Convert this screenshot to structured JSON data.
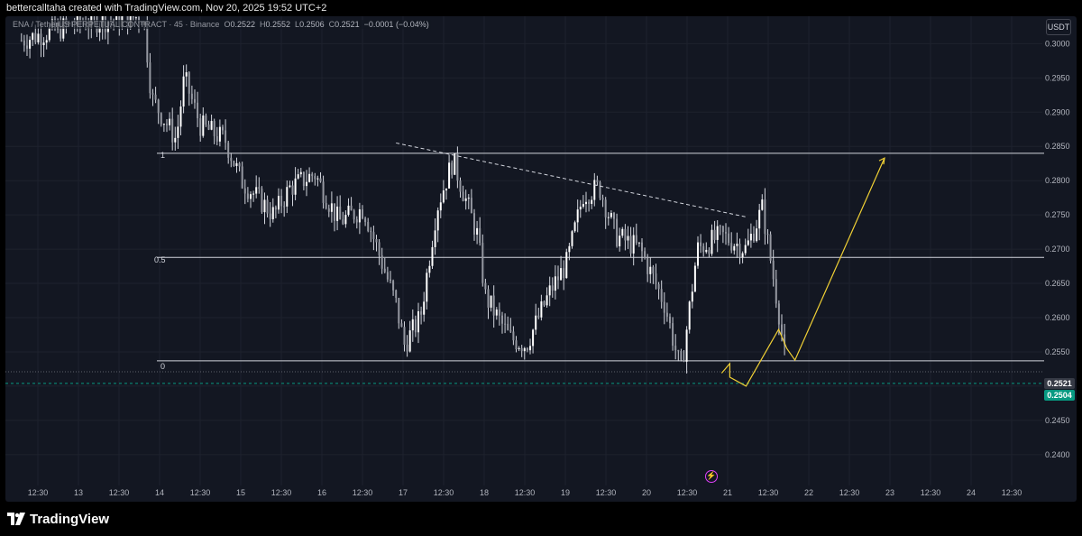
{
  "header": {
    "attribution": "bettercalltaha created with TradingView.com, Nov 20, 2025 19:52 UTC+2"
  },
  "legend": {
    "symbol": "ENA / TetherUS PERPETUAL CONTRACT · 45 · Binance",
    "open_k": "O",
    "open": "0.2522",
    "high_k": "H",
    "high": "0.2552",
    "low_k": "L",
    "low": "0.2506",
    "close_k": "C",
    "close": "0.2521",
    "change": "−0.0001 (−0.04%)"
  },
  "currency_button": "USDT",
  "price_tags": {
    "current": "0.2521",
    "green": "0.2504"
  },
  "fib_labels": {
    "one": "1",
    "half": "0.5",
    "zero": "0"
  },
  "brand": {
    "name": "TradingView"
  },
  "colors": {
    "background": "#131722",
    "candles": "#d1d4dc",
    "grid": "#1e222d",
    "projection": "#f0d035",
    "green_tag": "#089981",
    "flash_icon": "#e040fb"
  },
  "chart_data": {
    "type": "candlestick",
    "symbol": "ENA / TetherUS PERPETUAL CONTRACT",
    "interval": "45",
    "exchange": "Binance",
    "y_ticks": [
      "0.3000",
      "0.2950",
      "0.2900",
      "0.2850",
      "0.2800",
      "0.2750",
      "0.2700",
      "0.2650",
      "0.2600",
      "0.2550",
      "0.2500",
      "0.2450",
      "0.2400"
    ],
    "x_ticks": [
      "12:30",
      "13",
      "12:30",
      "14",
      "12:30",
      "15",
      "12:30",
      "16",
      "12:30",
      "17",
      "12:30",
      "18",
      "12:30",
      "19",
      "12:30",
      "20",
      "12:30",
      "21",
      "12:30",
      "22",
      "12:30",
      "23",
      "12:30",
      "24",
      "12:30"
    ],
    "ylim": [
      0.2355,
      0.304
    ],
    "fib_levels": [
      {
        "label": "1",
        "price": 0.284
      },
      {
        "label": "0.5",
        "price": 0.2688
      },
      {
        "label": "0",
        "price": 0.2537
      }
    ],
    "current_price": 0.2521,
    "green_line_price": 0.2504,
    "trendline": {
      "from": [
        "16.9",
        0.2855
      ],
      "to": [
        "21.2",
        0.2747
      ]
    },
    "projection": [
      [
        "20.9",
        0.2519
      ],
      [
        "21.0",
        0.2533
      ],
      [
        "21.0",
        0.2513
      ],
      [
        "21.2",
        0.25
      ],
      [
        "21.6",
        0.2583
      ],
      [
        "21.7",
        0.2555
      ],
      [
        "21.8",
        0.2538
      ],
      [
        "22.9",
        0.2833
      ]
    ],
    "close_path": [
      [
        "12.3",
        0.3005
      ],
      [
        "13.0",
        0.303
      ],
      [
        "13.8",
        0.304
      ],
      [
        "13.9",
        0.292
      ],
      [
        "14.2",
        0.286
      ],
      [
        "14.3",
        0.295
      ],
      [
        "14.5",
        0.288
      ],
      [
        "14.8",
        0.286
      ],
      [
        "15.0",
        0.28
      ],
      [
        "15.4",
        0.275
      ],
      [
        "15.6",
        0.279
      ],
      [
        "15.9",
        0.281
      ],
      [
        "16.2",
        0.274
      ],
      [
        "16.5",
        0.276
      ],
      [
        "16.9",
        0.262
      ],
      [
        "17.0",
        0.256
      ],
      [
        "17.2",
        0.26
      ],
      [
        "17.4",
        0.276
      ],
      [
        "17.6",
        0.283
      ],
      [
        "17.9",
        0.272
      ],
      [
        "18.0",
        0.263
      ],
      [
        "18.3",
        0.257
      ],
      [
        "18.5",
        0.256
      ],
      [
        "18.8",
        0.264
      ],
      [
        "19.0",
        0.268
      ],
      [
        "19.2",
        0.278
      ],
      [
        "19.4",
        0.279
      ],
      [
        "19.6",
        0.272
      ],
      [
        "19.9",
        0.27
      ],
      [
        "20.2",
        0.262
      ],
      [
        "20.4",
        0.252
      ],
      [
        "20.6",
        0.27
      ],
      [
        "20.9",
        0.272
      ],
      [
        "21.2",
        0.27
      ],
      [
        "21.4",
        0.276
      ],
      [
        "21.6",
        0.261
      ],
      [
        "21.7",
        0.2521
      ]
    ]
  }
}
